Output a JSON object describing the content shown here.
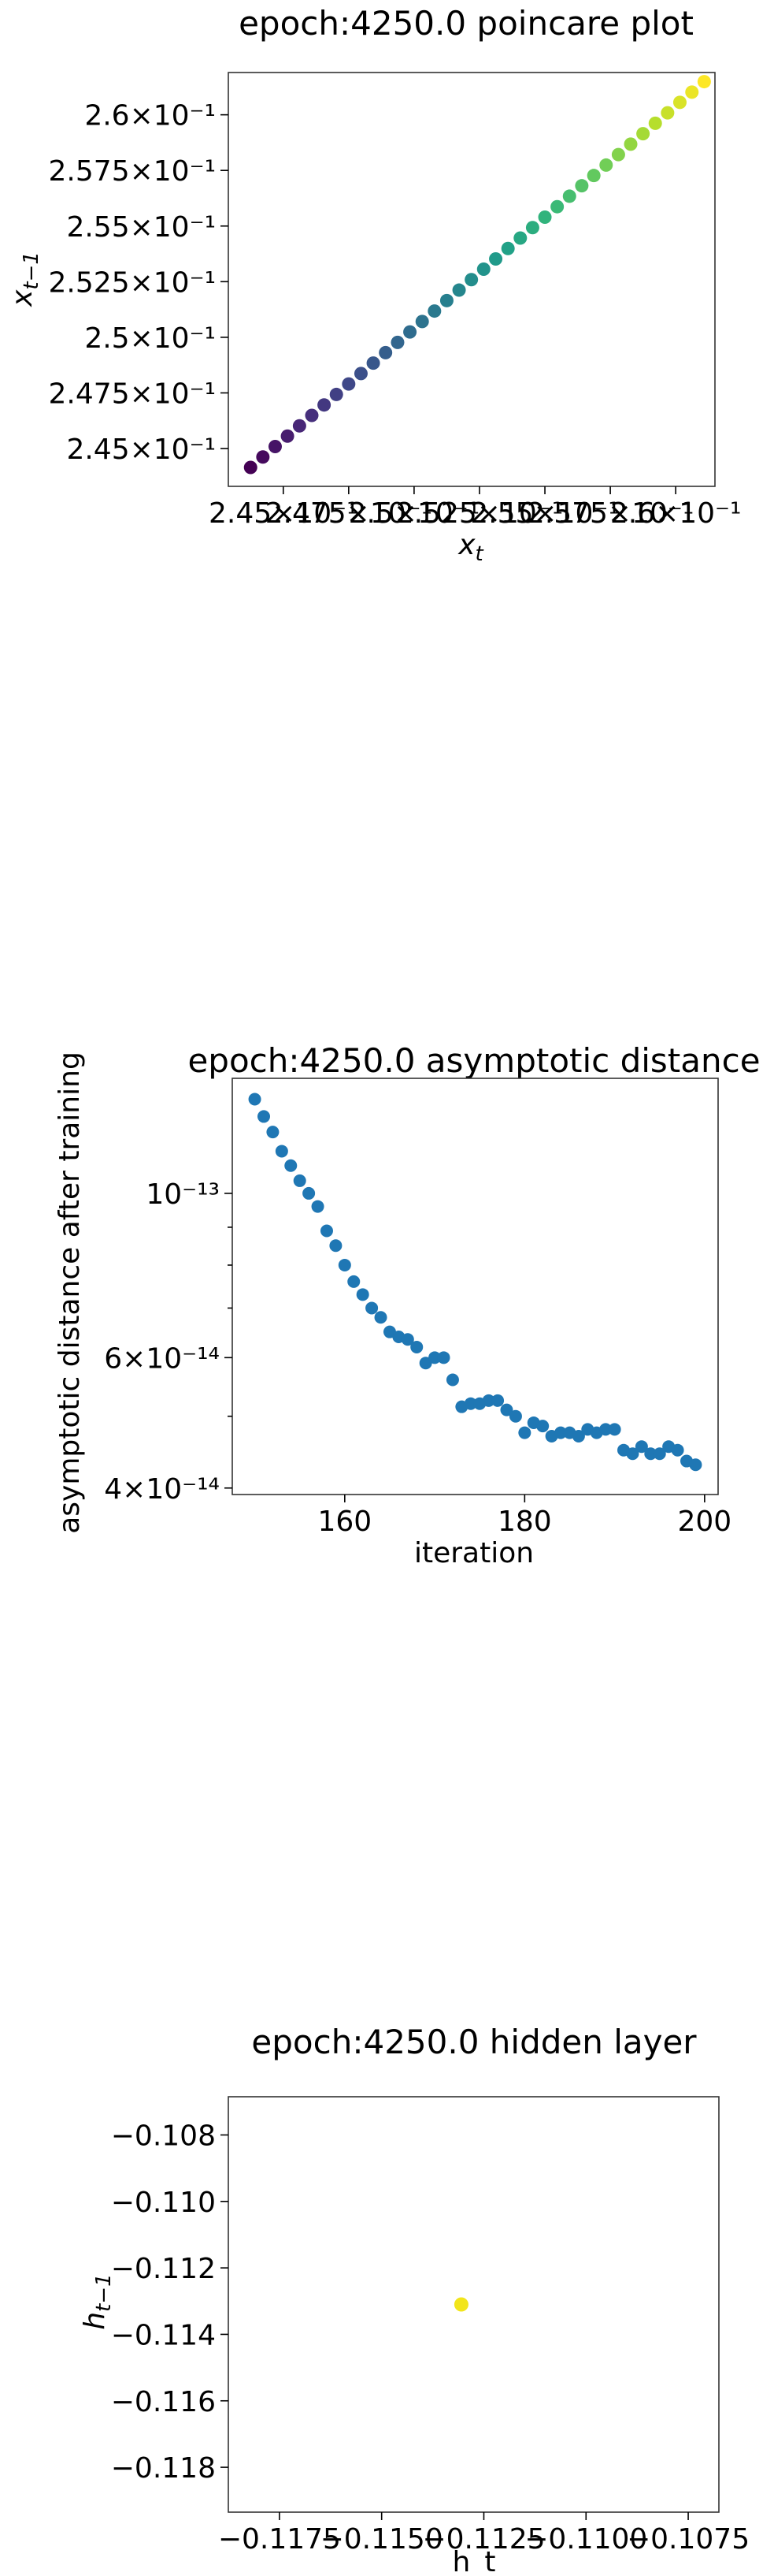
{
  "chart_data": [
    {
      "type": "scatter",
      "title": "epoch:4250.0 poincare plot",
      "xlabel": "x_t",
      "ylabel": "x_{t-1}",
      "colormap": "viridis",
      "x_tick_labels": [
        "2.45×10⁻¹",
        "2.475×10⁻¹",
        "2.5×10⁻¹",
        "2.525×10⁻¹",
        "2.55×10⁻¹",
        "2.575×10⁻¹",
        "2.6×10⁻¹"
      ],
      "y_tick_labels": [
        "2.45×10⁻¹",
        "2.475×10⁻¹",
        "2.5×10⁻¹",
        "2.525×10⁻¹",
        "2.55×10⁻¹",
        "2.575×10⁻¹",
        "2.6×10⁻¹"
      ],
      "xlim": [
        0.2429,
        0.2615
      ],
      "ylim": [
        0.2433,
        0.2619
      ],
      "x": [
        0.24375,
        0.24422,
        0.24469,
        0.24516,
        0.24562,
        0.24609,
        0.24656,
        0.24703,
        0.2475,
        0.24797,
        0.24844,
        0.24891,
        0.24937,
        0.24984,
        0.25031,
        0.25078,
        0.25125,
        0.25172,
        0.25219,
        0.25266,
        0.25312,
        0.25359,
        0.25406,
        0.25453,
        0.255,
        0.25547,
        0.25594,
        0.25641,
        0.25687,
        0.25734,
        0.25781,
        0.25828,
        0.25875,
        0.25922,
        0.25969,
        0.26016,
        0.26062,
        0.26109
      ],
      "y": [
        0.24415,
        0.24462,
        0.24509,
        0.24556,
        0.24602,
        0.24649,
        0.24696,
        0.24743,
        0.2479,
        0.24837,
        0.24884,
        0.24931,
        0.24977,
        0.25024,
        0.25071,
        0.25118,
        0.25165,
        0.25212,
        0.25259,
        0.25306,
        0.25352,
        0.25399,
        0.25446,
        0.25493,
        0.2554,
        0.25587,
        0.25634,
        0.25681,
        0.25727,
        0.25774,
        0.25821,
        0.25868,
        0.25915,
        0.25962,
        0.26009,
        0.26056,
        0.26102,
        0.26149
      ],
      "grid": false
    },
    {
      "type": "scatter",
      "title": "epoch:4250.0 asymptotic distance",
      "xlabel": "iteration",
      "ylabel": "asymptotic distance after training",
      "yscale": "log",
      "color": "#1f77b4",
      "x_ticks": [
        160,
        180,
        200
      ],
      "y_tick_labels": [
        "4×10⁻¹⁴",
        "6×10⁻¹⁴",
        "10⁻¹³"
      ],
      "y_ticks": [
        4e-14,
        6e-14,
        1e-13
      ],
      "xlim": [
        147.5,
        201.5
      ],
      "ylim": [
        3.92e-14,
        1.43e-13
      ],
      "x": [
        150,
        151,
        152,
        153,
        154,
        155,
        156,
        157,
        158,
        159,
        160,
        161,
        162,
        163,
        164,
        165,
        166,
        167,
        168,
        169,
        170,
        171,
        172,
        173,
        174,
        175,
        176,
        177,
        178,
        179,
        180,
        181,
        182,
        183,
        184,
        185,
        186,
        187,
        188,
        189,
        190,
        191,
        192,
        193,
        194,
        195,
        196,
        197,
        198,
        199
      ],
      "y": [
        1.34e-13,
        1.27e-13,
        1.21e-13,
        1.14e-13,
        1.09e-13,
        1.04e-13,
        1e-13,
        9.6e-14,
        8.9e-14,
        8.5e-14,
        8e-14,
        7.6e-14,
        7.3e-14,
        7e-14,
        6.8e-14,
        6.5e-14,
        6.4e-14,
        6.35e-14,
        6.2e-14,
        5.9e-14,
        6e-14,
        6e-14,
        5.6e-14,
        5.15e-14,
        5.2e-14,
        5.2e-14,
        5.25e-14,
        5.25e-14,
        5.1e-14,
        5e-14,
        4.75e-14,
        4.9e-14,
        4.85e-14,
        4.7e-14,
        4.75e-14,
        4.75e-14,
        4.7e-14,
        4.8e-14,
        4.75e-14,
        4.8e-14,
        4.8e-14,
        4.5e-14,
        4.45e-14,
        4.55e-14,
        4.45e-14,
        4.45e-14,
        4.55e-14,
        4.5e-14,
        4.35e-14,
        4.3e-14
      ],
      "grid": false
    },
    {
      "type": "scatter",
      "title": "epoch:4250.0 hidden layer",
      "xlabel": "h_t",
      "ylabel": "h_{t-1}",
      "color": "#f2e51b",
      "x_tick_labels": [
        "−0.1175",
        "−0.1150",
        "−0.1125",
        "−0.1100",
        "−0.1075"
      ],
      "x_ticks": [
        -0.1175,
        -0.115,
        -0.1125,
        -0.11,
        -0.1075
      ],
      "y_tick_labels": [
        "−0.108",
        "−0.110",
        "−0.112",
        "−0.114",
        "−0.116",
        "−0.118"
      ],
      "y_ticks": [
        -0.108,
        -0.11,
        -0.112,
        -0.114,
        -0.116,
        -0.118
      ],
      "xlim": [
        -0.11875,
        -0.10675
      ],
      "ylim": [
        -0.11935,
        -0.10685
      ],
      "x": [
        -0.11305
      ],
      "y": [
        -0.1131
      ],
      "grid": false
    }
  ]
}
